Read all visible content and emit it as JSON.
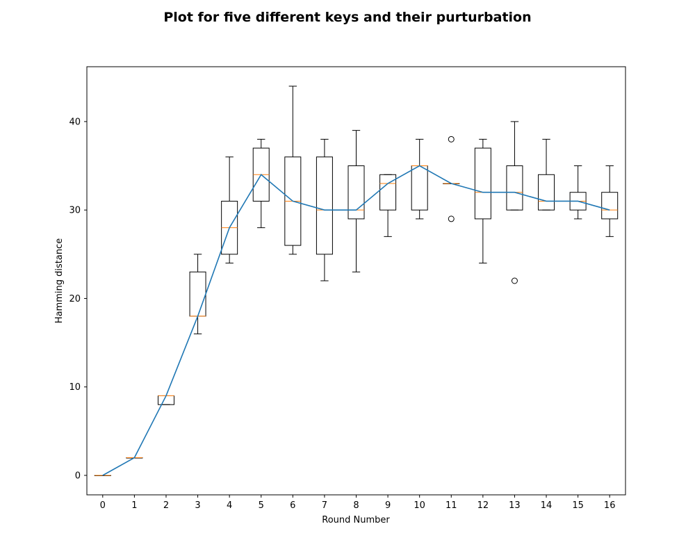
{
  "chart_data": {
    "type": "box",
    "title": "Plot for five different keys and their purturbation",
    "xlabel": "Round Number",
    "ylabel": "Hamming distance",
    "categories": [
      "0",
      "1",
      "2",
      "3",
      "4",
      "5",
      "6",
      "7",
      "8",
      "9",
      "10",
      "11",
      "12",
      "13",
      "14",
      "15",
      "16"
    ],
    "ylim": [
      -2.2,
      46.2
    ],
    "xlim": [
      -0.5,
      16.5
    ],
    "yticks": [
      0,
      10,
      20,
      30,
      40
    ],
    "grid": false,
    "boxes": [
      {
        "whisker_low": 0,
        "q1": 0,
        "median": 0,
        "q3": 0,
        "whisker_high": 0,
        "outliers": []
      },
      {
        "whisker_low": 2,
        "q1": 2,
        "median": 2,
        "q3": 2,
        "whisker_high": 2,
        "outliers": []
      },
      {
        "whisker_low": 8,
        "q1": 8,
        "median": 9,
        "q3": 9,
        "whisker_high": 9,
        "outliers": []
      },
      {
        "whisker_low": 16,
        "q1": 18,
        "median": 18,
        "q3": 23,
        "whisker_high": 25,
        "outliers": []
      },
      {
        "whisker_low": 24,
        "q1": 25,
        "median": 28,
        "q3": 31,
        "whisker_high": 36,
        "outliers": []
      },
      {
        "whisker_low": 28,
        "q1": 31,
        "median": 34,
        "q3": 37,
        "whisker_high": 38,
        "outliers": []
      },
      {
        "whisker_low": 25,
        "q1": 26,
        "median": 31,
        "q3": 36,
        "whisker_high": 44,
        "outliers": []
      },
      {
        "whisker_low": 22,
        "q1": 25,
        "median": 30,
        "q3": 36,
        "whisker_high": 38,
        "outliers": []
      },
      {
        "whisker_low": 23,
        "q1": 29,
        "median": 30,
        "q3": 35,
        "whisker_high": 39,
        "outliers": []
      },
      {
        "whisker_low": 27,
        "q1": 30,
        "median": 33,
        "q3": 34,
        "whisker_high": 34,
        "outliers": []
      },
      {
        "whisker_low": 29,
        "q1": 30,
        "median": 35,
        "q3": 35,
        "whisker_high": 38,
        "outliers": []
      },
      {
        "whisker_low": 33,
        "q1": 33,
        "median": 33,
        "q3": 33,
        "whisker_high": 33,
        "outliers": [
          38,
          29
        ]
      },
      {
        "whisker_low": 24,
        "q1": 29,
        "median": 32,
        "q3": 37,
        "whisker_high": 38,
        "outliers": []
      },
      {
        "whisker_low": 30,
        "q1": 30,
        "median": 32,
        "q3": 35,
        "whisker_high": 40,
        "outliers": [
          22
        ]
      },
      {
        "whisker_low": 30,
        "q1": 30,
        "median": 31,
        "q3": 34,
        "whisker_high": 38,
        "outliers": []
      },
      {
        "whisker_low": 29,
        "q1": 30,
        "median": 31,
        "q3": 32,
        "whisker_high": 35,
        "outliers": []
      },
      {
        "whisker_low": 27,
        "q1": 29,
        "median": 30,
        "q3": 32,
        "whisker_high": 35,
        "outliers": []
      }
    ],
    "median_line": {
      "values": [
        0,
        2,
        9,
        18,
        28,
        34,
        31,
        30,
        30,
        33,
        35,
        33,
        32,
        32,
        31,
        31,
        30
      ]
    },
    "colors": {
      "box": "#000000",
      "median": "#ff7f0e",
      "line": "#1f77b4"
    }
  }
}
